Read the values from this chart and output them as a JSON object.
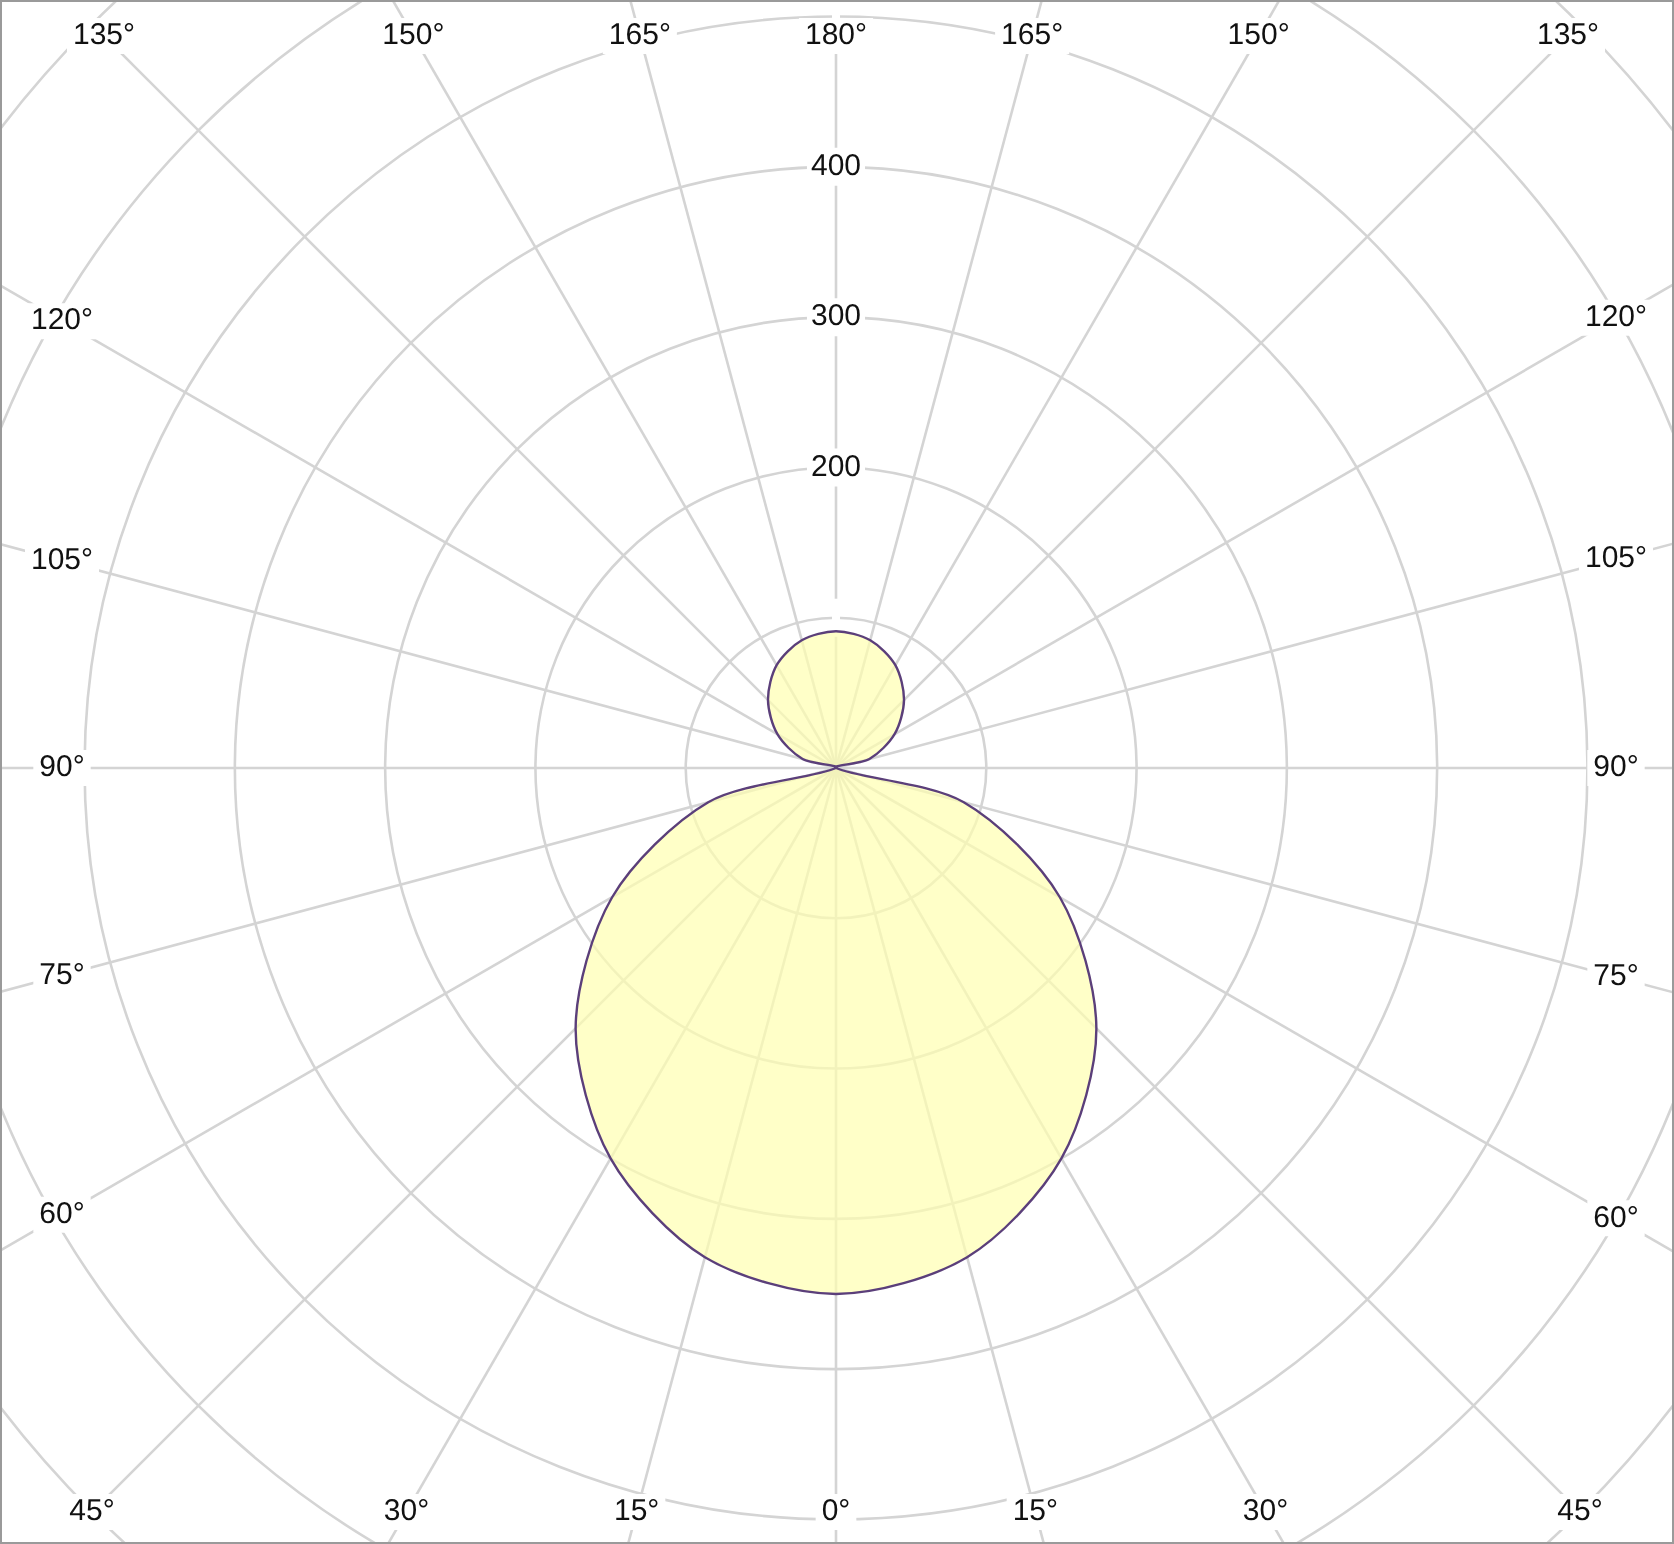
{
  "chart_data": {
    "type": "radar",
    "categories": [
      "180°",
      "165°",
      "150°",
      "135°",
      "120°",
      "105°",
      "90°",
      "75°",
      "60°",
      "45°",
      "30°",
      "15°",
      "0°",
      "15°",
      "30°",
      "45°",
      "60°",
      "75°",
      "90°",
      "105°",
      "120°",
      "135°",
      "150°",
      "165°"
    ],
    "series": [
      {
        "color": "#ffffb0",
        "values": [
          91,
          88,
          79,
          64,
          45,
          23,
          0,
          88,
          172,
          245,
          300,
          337,
          350,
          337,
          300,
          245,
          172,
          88,
          0,
          23,
          45,
          64,
          79,
          88
        ]
      }
    ],
    "ylim": [
      0,
      700
    ],
    "yticks": [
      200,
      300,
      400
    ],
    "grid": true,
    "legend": false,
    "marker": "none"
  }
}
